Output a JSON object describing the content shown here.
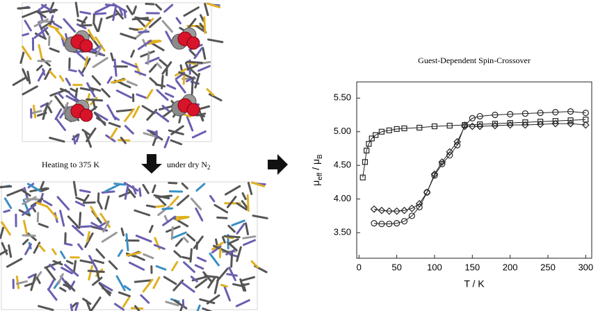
{
  "labels": {
    "heating": "Heating to 375 K",
    "atmosphere": {
      "text": "under dry N",
      "subscript": "2"
    }
  },
  "chart_data": {
    "type": "scatter",
    "title": "Guest-Dependent Spin-Crossover",
    "x_label": "T / K",
    "y_label": [
      {
        "text": "μ"
      },
      {
        "sub": "eff"
      },
      {
        "text": " / μ"
      },
      {
        "sub": "B"
      }
    ],
    "xlim": [
      -3,
      308
    ],
    "xticks": [
      0,
      50,
      100,
      150,
      200,
      250,
      300
    ],
    "ylim": [
      3.12,
      5.74
    ],
    "yticks": [
      {
        "value": 3.5,
        "label": "3.50"
      },
      {
        "value": 4,
        "label": "4.00"
      },
      {
        "value": 4.5,
        "label": "4.50"
      },
      {
        "value": 5,
        "label": "5.00"
      },
      {
        "value": 5.5,
        "label": "5.50"
      }
    ],
    "connect": true,
    "series": [
      {
        "marker": "square",
        "color": "#222222",
        "x": [
          5,
          8,
          10,
          13,
          17,
          22,
          30,
          40,
          50,
          60,
          80,
          100,
          120,
          140,
          160,
          180,
          200,
          220,
          240,
          260,
          280,
          300
        ],
        "values": [
          4.32,
          4.55,
          4.72,
          4.82,
          4.9,
          4.95,
          5.0,
          5.02,
          5.04,
          5.05,
          5.06,
          5.08,
          5.09,
          5.1,
          5.11,
          5.12,
          5.13,
          5.14,
          5.15,
          5.16,
          5.17,
          5.18
        ]
      },
      {
        "marker": "circle",
        "color": "#222222",
        "x": [
          20,
          30,
          40,
          50,
          60,
          70,
          80,
          90,
          100,
          110,
          120,
          130,
          140,
          150,
          160,
          180,
          200,
          220,
          240,
          260,
          280,
          300
        ],
        "values": [
          3.64,
          3.63,
          3.63,
          3.64,
          3.67,
          3.75,
          3.88,
          4.1,
          4.35,
          4.52,
          4.65,
          4.8,
          5.1,
          5.2,
          5.23,
          5.25,
          5.26,
          5.27,
          5.28,
          5.29,
          5.3,
          5.28
        ]
      },
      {
        "marker": "diamond",
        "color": "#222222",
        "x": [
          20,
          30,
          40,
          50,
          60,
          70,
          80,
          90,
          100,
          110,
          120,
          130,
          140,
          150,
          160,
          180,
          200,
          220,
          240,
          260,
          280,
          300
        ],
        "values": [
          3.85,
          3.83,
          3.82,
          3.82,
          3.83,
          3.86,
          3.93,
          4.1,
          4.37,
          4.55,
          4.7,
          4.85,
          5.08,
          5.08,
          5.08,
          5.09,
          5.1,
          5.1,
          5.11,
          5.12,
          5.12,
          5.1
        ]
      }
    ]
  }
}
